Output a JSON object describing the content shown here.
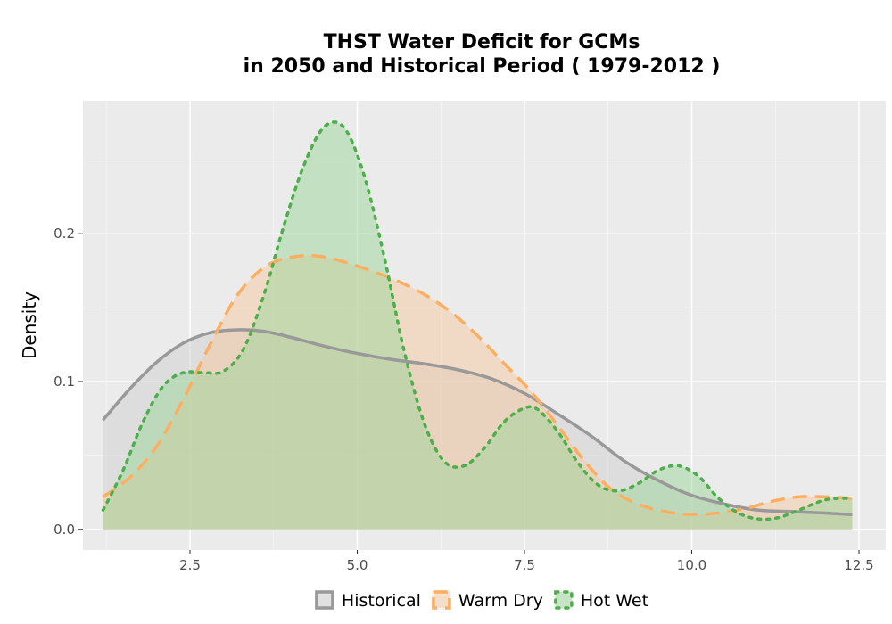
{
  "chart_data": {
    "type": "area",
    "subtype": "density",
    "title_line1": "THST  Water Deficit for GCMs",
    "title_line2": "in 2050 and Historical Period ( 1979-2012 )",
    "xlabel": "",
    "ylabel": "Density",
    "xlim": [
      0.9,
      12.9
    ],
    "ylim": [
      -0.014,
      0.29
    ],
    "x_ticks": [
      2.5,
      5.0,
      7.5,
      10.0,
      12.5
    ],
    "x_tick_labels": [
      "2.5",
      "5.0",
      "7.5",
      "10.0",
      "12.5"
    ],
    "y_ticks": [
      0.0,
      0.1,
      0.2
    ],
    "y_tick_labels": [
      "0.0",
      "0.1",
      "0.2"
    ],
    "grid": true,
    "panel_background": "#ebebeb",
    "legend_position": "bottom",
    "series": [
      {
        "name": "Historical",
        "line_color": "#999999",
        "fill_color": "#cfcfcf",
        "fill_opacity": 0.5,
        "line_style": "solid",
        "x": [
          1.2,
          1.6,
          2.0,
          2.4,
          2.8,
          3.2,
          3.6,
          4.0,
          4.5,
          5.0,
          5.5,
          6.0,
          6.5,
          7.0,
          7.5,
          8.0,
          8.5,
          9.0,
          9.5,
          10.0,
          10.5,
          11.0,
          11.5,
          12.0,
          12.4
        ],
        "y": [
          0.074,
          0.095,
          0.113,
          0.126,
          0.133,
          0.135,
          0.134,
          0.13,
          0.124,
          0.119,
          0.115,
          0.112,
          0.108,
          0.102,
          0.092,
          0.078,
          0.063,
          0.046,
          0.033,
          0.023,
          0.017,
          0.013,
          0.012,
          0.011,
          0.01
        ]
      },
      {
        "name": "Warm Dry",
        "line_color": "#fdae61",
        "fill_color": "#f8c9a0",
        "fill_opacity": 0.5,
        "line_style": "dashed",
        "x": [
          1.2,
          1.6,
          2.0,
          2.4,
          2.8,
          3.2,
          3.6,
          4.0,
          4.4,
          4.8,
          5.2,
          5.6,
          6.0,
          6.4,
          6.8,
          7.2,
          7.6,
          8.0,
          8.4,
          8.8,
          9.2,
          9.6,
          10.0,
          10.4,
          10.8,
          11.2,
          11.6,
          12.0,
          12.4
        ],
        "y": [
          0.022,
          0.035,
          0.056,
          0.088,
          0.125,
          0.158,
          0.177,
          0.184,
          0.185,
          0.181,
          0.175,
          0.168,
          0.159,
          0.147,
          0.131,
          0.112,
          0.093,
          0.07,
          0.046,
          0.027,
          0.017,
          0.012,
          0.01,
          0.011,
          0.014,
          0.019,
          0.022,
          0.022,
          0.021
        ]
      },
      {
        "name": "Hot Wet",
        "line_color": "#4daf4a",
        "fill_color": "#9cd59a",
        "fill_opacity": 0.5,
        "line_style": "dotted",
        "x": [
          1.2,
          1.5,
          1.8,
          2.1,
          2.4,
          2.7,
          3.0,
          3.3,
          3.6,
          3.9,
          4.2,
          4.5,
          4.8,
          5.1,
          5.4,
          5.7,
          6.0,
          6.3,
          6.6,
          6.9,
          7.2,
          7.5,
          7.7,
          8.0,
          8.3,
          8.6,
          8.9,
          9.2,
          9.5,
          9.8,
          10.1,
          10.4,
          10.7,
          11.0,
          11.3,
          11.6,
          12.0,
          12.4
        ],
        "y": [
          0.013,
          0.04,
          0.073,
          0.097,
          0.106,
          0.106,
          0.107,
          0.122,
          0.158,
          0.205,
          0.246,
          0.272,
          0.272,
          0.24,
          0.185,
          0.121,
          0.072,
          0.046,
          0.043,
          0.055,
          0.073,
          0.082,
          0.081,
          0.066,
          0.045,
          0.03,
          0.026,
          0.031,
          0.04,
          0.043,
          0.036,
          0.021,
          0.011,
          0.007,
          0.008,
          0.013,
          0.02,
          0.021
        ]
      }
    ]
  }
}
